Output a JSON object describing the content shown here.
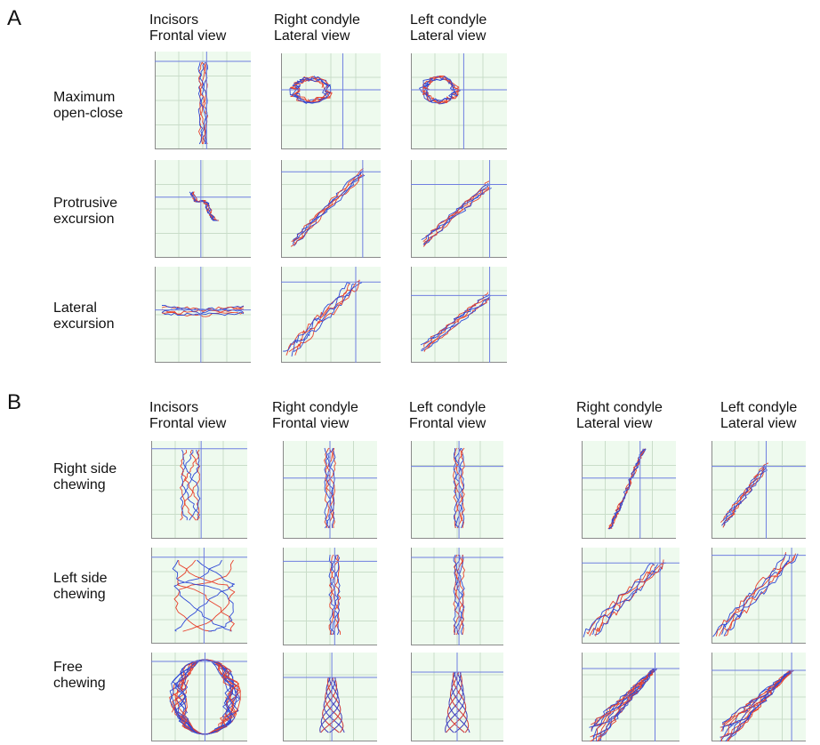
{
  "panelA": {
    "letter": "A",
    "columns": [
      {
        "line1": "Incisors",
        "line2": "Frontal view"
      },
      {
        "line1": "Right condyle",
        "line2": "Lateral view"
      },
      {
        "line1": "Left condyle",
        "line2": "Lateral view"
      }
    ],
    "rows": [
      {
        "line1": "Maximum",
        "line2": "open-close"
      },
      {
        "line1": "Protrusive",
        "line2": "excursion"
      },
      {
        "line1": "Lateral",
        "line2": "excursion"
      }
    ]
  },
  "panelB": {
    "letter": "B",
    "columns": [
      {
        "line1": "Incisors",
        "line2": "Frontal view"
      },
      {
        "line1": "Right condyle",
        "line2": "Frontal view"
      },
      {
        "line1": "Left condyle",
        "line2": "Frontal view"
      },
      {
        "line1": "Right condyle",
        "line2": "Lateral view"
      },
      {
        "line1": "Left condyle",
        "line2": "Lateral view"
      }
    ],
    "rows": [
      {
        "line1": "Right side",
        "line2": "chewing"
      },
      {
        "line1": "Left side",
        "line2": "chewing"
      },
      {
        "line1": "Free",
        "line2": "chewing"
      }
    ]
  },
  "colors": {
    "trace_red": "#e8412c",
    "trace_blue": "#2f49d6",
    "crosshair": "#6f7fe0",
    "grid": "#c9ddc9",
    "plot_bg": "#eefaee"
  }
}
